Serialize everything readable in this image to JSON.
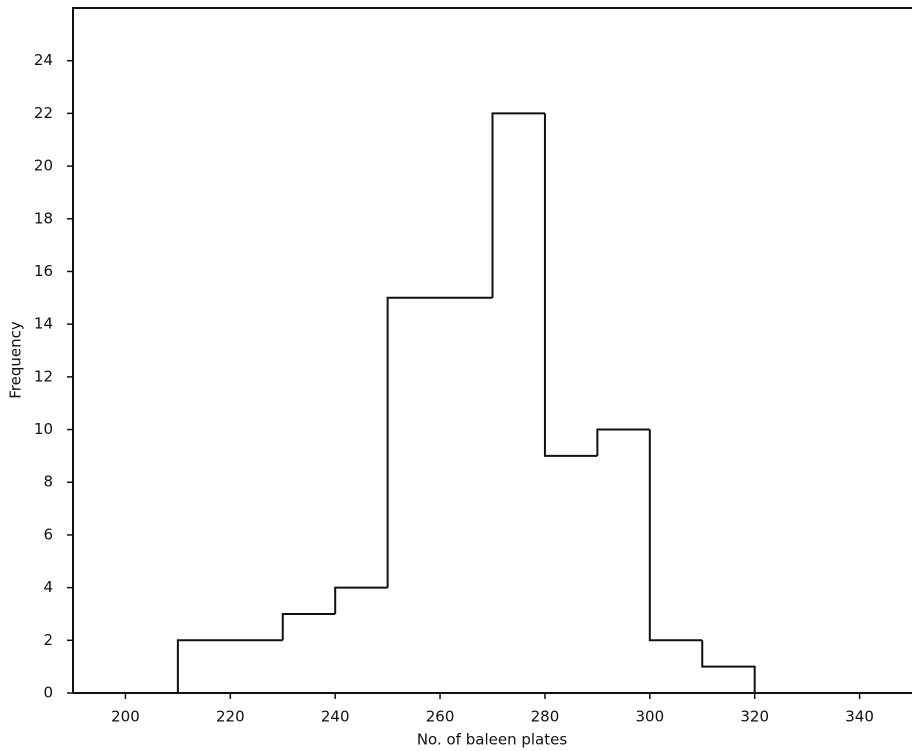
{
  "chart_data": {
    "type": "histogram",
    "x_label": "No. of baleen plates",
    "y_label": "Frequency",
    "bins": [
      210,
      230,
      240,
      250,
      270,
      280,
      290,
      300,
      310,
      320
    ],
    "values": [
      2,
      3,
      4,
      15,
      22,
      9,
      10,
      2,
      1
    ],
    "color": "#111111",
    "xlim": [
      190,
      350
    ],
    "xticks": [
      200,
      220,
      240,
      260,
      280,
      300,
      320,
      340
    ],
    "ylim": [
      0,
      26
    ],
    "yticks": [
      0,
      2,
      4,
      6,
      8,
      10,
      12,
      14,
      16,
      18,
      20,
      22,
      24
    ]
  }
}
